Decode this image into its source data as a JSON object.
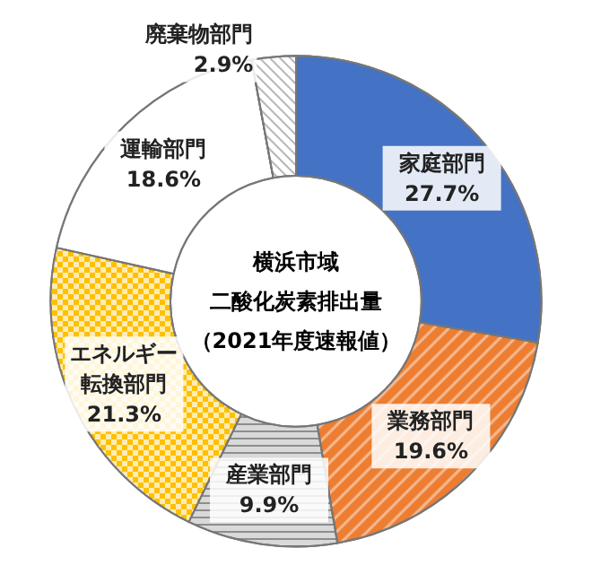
{
  "chart_data": {
    "type": "donut",
    "title": "横浜市域",
    "annotations": [
      "二酸化炭素排出量",
      "（2021年度速報値）"
    ],
    "categories": [
      "家庭部門",
      "業務部門",
      "産業部門",
      "エネルギー転換部門",
      "運輸部門",
      "廃棄物部門"
    ],
    "values": [
      27.7,
      19.6,
      9.9,
      21.3,
      18.6,
      2.9
    ],
    "value_labels": [
      "27.7%",
      "19.6%",
      "9.9%",
      "21.3%",
      "18.6%",
      "2.9%"
    ],
    "colors": [
      "#4472c4",
      "#ed7d31",
      "#d9d9d9",
      "#ffc000",
      "#ffffff",
      "#ffffff"
    ],
    "legend": false
  }
}
